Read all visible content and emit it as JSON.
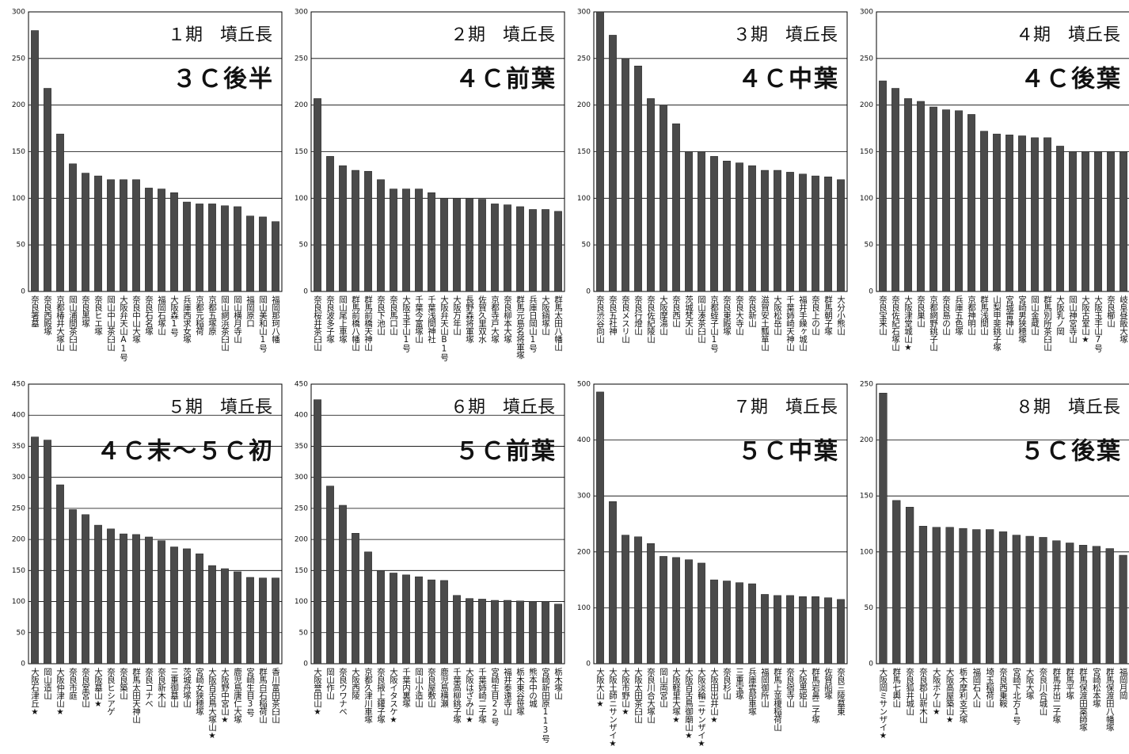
{
  "chart_data": [
    {
      "type": "bar",
      "title": "１期　墳丘長",
      "subtitle": "３Ｃ後半",
      "color": "#4a4a4a",
      "grid": true,
      "categories": [
        "奈良箸墓",
        "奈良西殿塚",
        "京都椿井大塚山",
        "岡山浦間茶臼山",
        "奈良黒塚",
        "奈良ヒエ塚",
        "岡山中山茶臼山",
        "大阪弁天山A1号",
        "奈良中山大塚",
        "奈良石名塚",
        "福岡石塚山",
        "大阪森1号",
        "兵庫西求女塚",
        "京都元稲荷",
        "京都五塚原",
        "岡山網浜茶臼山",
        "岡山横月寺山",
        "福岡原口",
        "岡山美和山1号",
        "福岡那珂八幡"
      ],
      "values": [
        280,
        218,
        169,
        137,
        127,
        124,
        120,
        120,
        120,
        111,
        110,
        106,
        96,
        94,
        94,
        92,
        91,
        81,
        80,
        75
      ],
      "ylim": [
        0,
        300
      ],
      "yticks": [
        0,
        50,
        100,
        150,
        200,
        250,
        300
      ]
    },
    {
      "type": "bar",
      "title": "２期　墳丘長",
      "subtitle": "４Ｃ前葉",
      "color": "#4a4a4a",
      "grid": true,
      "categories": [
        "奈良桜井茶臼山",
        "奈良波多子塚",
        "岡山尾上車塚",
        "群馬前橋八幡山",
        "群馬前橋天神山",
        "奈良下池山",
        "奈良馬口山",
        "大阪玉手山1号",
        "千葉今富塚山",
        "千葉浅間神社",
        "大阪弁天山B1号",
        "大阪万年山",
        "長野森将軍塚",
        "佐賀久里双水",
        "京都寺戸大塚",
        "奈良柳本大塚",
        "群馬元島名将軍塚",
        "兵庫日岡山1号",
        "大阪鍋塚山",
        "群馬太田八幡山"
      ],
      "values": [
        207,
        145,
        135,
        130,
        129,
        120,
        110,
        110,
        110,
        106,
        100,
        100,
        100,
        99,
        94,
        93,
        91,
        88,
        88,
        86
      ],
      "ylim": [
        0,
        300
      ],
      "yticks": [
        0,
        50,
        100,
        150,
        200,
        250,
        300
      ]
    },
    {
      "type": "bar",
      "title": "３期　墳丘長",
      "subtitle": "４Ｃ中葉",
      "color": "#4a4a4a",
      "grid": true,
      "categories": [
        "奈良渋谷向山",
        "奈良五社神",
        "奈良メスリ山",
        "奈良行燈山",
        "奈良佐紀陵山",
        "大阪摩湯山",
        "奈良西山",
        "茨城梵天山",
        "岡山湊茶臼山",
        "京都蛭子山1号",
        "奈良東殿塚",
        "奈良大寺山",
        "奈良新山",
        "滋賀安土瓢箪山",
        "大阪松岳山",
        "千葉姉崎天神山",
        "福井手繰ヶ城山",
        "奈良上の山",
        "群馬朝子塚",
        "大分小熊山"
      ],
      "values": [
        300,
        275,
        250,
        242,
        207,
        200,
        180,
        150,
        150,
        145,
        140,
        138,
        135,
        130,
        130,
        128,
        126,
        124,
        123,
        120
      ],
      "ylim": [
        0,
        300
      ],
      "yticks": [
        0,
        50,
        100,
        150,
        200,
        250,
        300
      ]
    },
    {
      "type": "bar",
      "title": "４期　墳丘長",
      "subtitle": "４Ｃ後葉",
      "color": "#4a4a4a",
      "grid": true,
      "categories": [
        "奈良宝来山",
        "奈良佐紀石塚山",
        "大阪津堂城山★",
        "奈良巣山",
        "京都網野銚子山",
        "奈良島の山",
        "兵庫五色塚",
        "京都神明山",
        "群馬浅間山",
        "山梨甲斐銚子塚",
        "宮城雷神山",
        "宮崎男狭穂塚",
        "岡山金蔵山",
        "群馬別所茶臼山",
        "大阪乳ノ岡",
        "岡山神宮寺山",
        "大阪古室山★",
        "大阪玉手山7号",
        "奈良櫛山",
        "岐阜昼飯大塚"
      ],
      "values": [
        226,
        218,
        207,
        204,
        198,
        195,
        194,
        190,
        172,
        169,
        168,
        167,
        165,
        165,
        156,
        150,
        150,
        150,
        150,
        150
      ],
      "ylim": [
        0,
        300
      ],
      "yticks": [
        0,
        50,
        100,
        150,
        200,
        250,
        300
      ]
    },
    {
      "type": "bar",
      "title": "５期　墳丘長",
      "subtitle": "４Ｃ末～５Ｃ初",
      "color": "#4a4a4a",
      "grid": true,
      "categories": [
        "大阪石津丘★",
        "岡山造山",
        "大阪仲津山★",
        "奈良市庭",
        "奈良室宮山",
        "大阪墓山★",
        "奈良ヒシアゲ",
        "奈良築山",
        "群馬太田天神山",
        "奈良コナベ",
        "奈良新木山",
        "三重御墓山",
        "茨城舟塚山",
        "宮崎女狭穂塚",
        "大阪百舌鳥大塚山★",
        "大阪野中宮山★",
        "鹿児島唐仁大塚",
        "宮崎生目3号",
        "群馬白石稲荷山",
        "香川富田茶臼山"
      ],
      "values": [
        365,
        360,
        288,
        248,
        240,
        223,
        217,
        209,
        208,
        204,
        198,
        188,
        185,
        177,
        158,
        153,
        148,
        139,
        138,
        138
      ],
      "ylim": [
        0,
        450
      ],
      "yticks": [
        0,
        50,
        100,
        150,
        200,
        250,
        300,
        350,
        400,
        450
      ]
    },
    {
      "type": "bar",
      "title": "６期　墳丘長",
      "subtitle": "５Ｃ前葉",
      "color": "#4a4a4a",
      "grid": true,
      "categories": [
        "大阪誉田山★",
        "岡山作山",
        "奈良ウワナベ",
        "大阪西陵",
        "京都久津川車塚",
        "奈良掖上鑵子塚",
        "大阪イタスケ★",
        "千葉内裏塚",
        "岡山小造山",
        "奈良屋敷山",
        "鹿児島横瀬",
        "千葉高柳銚子塚",
        "大阪はざみ山★",
        "千葉姉崎二子塚",
        "宮崎生目22号",
        "福井泰遠寺山",
        "栃木東谷笹塚",
        "熊本中の城",
        "宮崎新田原113号",
        "栃木塚山"
      ],
      "values": [
        425,
        286,
        255,
        210,
        180,
        150,
        146,
        143,
        140,
        135,
        134,
        110,
        105,
        104,
        102,
        102,
        101,
        100,
        100,
        96
      ],
      "ylim": [
        0,
        450
      ],
      "yticks": [
        0,
        50,
        100,
        150,
        200,
        250,
        300,
        350,
        400,
        450
      ]
    },
    {
      "type": "bar",
      "title": "７期　墳丘長",
      "subtitle": "５Ｃ中葉",
      "color": "#4a4a4a",
      "grid": true,
      "categories": [
        "大阪大山★",
        "大阪土師ニサンザイ★",
        "大阪市野山★",
        "大阪太田茶臼山",
        "奈良川合大塚山",
        "岡山両宮山",
        "大阪軽里大塚★",
        "大阪百舌鳥御廟山★",
        "大阪淡輪ニサンザイ★",
        "大阪田出井山★",
        "奈良杉山",
        "三重宝塚",
        "兵庫雲部車塚",
        "福岡御所山",
        "群馬上並榎稲荷山",
        "奈良宿寺山",
        "大阪黒姫山",
        "群馬岩鼻二子塚",
        "佐賀船塚",
        "奈良三陵墓東"
      ],
      "values": [
        486,
        290,
        230,
        227,
        215,
        192,
        190,
        186,
        180,
        150,
        148,
        145,
        143,
        124,
        122,
        122,
        120,
        120,
        118,
        115
      ],
      "ylim": [
        0,
        500
      ],
      "yticks": [
        0,
        100,
        200,
        300,
        400,
        500
      ]
    },
    {
      "type": "bar",
      "title": "８期　墳丘長",
      "subtitle": "５Ｃ後葉",
      "color": "#4a4a4a",
      "grid": true,
      "categories": [
        "大阪岡ミサンザイ★",
        "群馬七輿山",
        "奈良狐井城山",
        "奈良郡山新木山",
        "大阪ボケ山★",
        "大阪高屋築山★",
        "栃木摩利支天塚",
        "福岡石人山",
        "埼玉稲荷山",
        "奈良西乗鞍",
        "宮崎下北方1号",
        "大阪大塚",
        "奈良川合城山",
        "群馬井出二子塚",
        "群馬平塚",
        "群馬保渡田薬師塚",
        "宮崎松本塚",
        "群馬保渡田八幡塚",
        "福岡月岡"
      ],
      "values": [
        242,
        146,
        140,
        123,
        122,
        122,
        121,
        120,
        120,
        118,
        115,
        114,
        113,
        110,
        108,
        106,
        105,
        103,
        97
      ],
      "ylim": [
        0,
        250
      ],
      "yticks": [
        0,
        50,
        100,
        150,
        200,
        250
      ]
    }
  ]
}
